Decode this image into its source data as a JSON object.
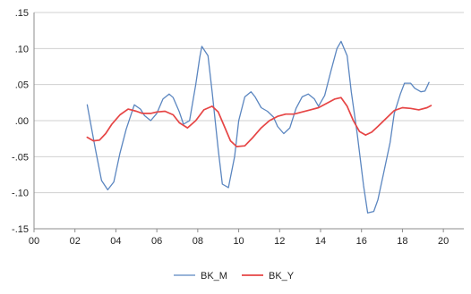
{
  "chart_data": {
    "type": "line",
    "title": "",
    "xlabel": "",
    "ylabel": "",
    "xlim": [
      2000,
      2021
    ],
    "ylim": [
      -0.15,
      0.15
    ],
    "x_ticks": [
      {
        "value": 2000,
        "label": "00"
      },
      {
        "value": 2002,
        "label": "02"
      },
      {
        "value": 2004,
        "label": "04"
      },
      {
        "value": 2006,
        "label": "06"
      },
      {
        "value": 2008,
        "label": "08"
      },
      {
        "value": 2010,
        "label": "10"
      },
      {
        "value": 2012,
        "label": "12"
      },
      {
        "value": 2014,
        "label": "14"
      },
      {
        "value": 2016,
        "label": "16"
      },
      {
        "value": 2018,
        "label": "18"
      },
      {
        "value": 2020,
        "label": "20"
      }
    ],
    "y_ticks": [
      {
        "value": 0.15,
        "label": ".15"
      },
      {
        "value": 0.1,
        "label": ".10"
      },
      {
        "value": 0.05,
        "label": ".05"
      },
      {
        "value": 0.0,
        "label": ".00"
      },
      {
        "value": -0.05,
        "label": "-.05"
      },
      {
        "value": -0.1,
        "label": "-.10"
      },
      {
        "value": -0.15,
        "label": "-.15"
      }
    ],
    "grid": {
      "horizontal": true,
      "vertical": false
    },
    "legend_position": "bottom",
    "series": [
      {
        "name": "BK_M",
        "color": "#5b86c0",
        "points": [
          [
            2002.6,
            0.022
          ],
          [
            2003.0,
            -0.04
          ],
          [
            2003.3,
            -0.083
          ],
          [
            2003.6,
            -0.096
          ],
          [
            2003.9,
            -0.085
          ],
          [
            2004.2,
            -0.045
          ],
          [
            2004.5,
            -0.012
          ],
          [
            2004.9,
            0.022
          ],
          [
            2005.2,
            0.016
          ],
          [
            2005.4,
            0.007
          ],
          [
            2005.7,
            0.0
          ],
          [
            2006.0,
            0.01
          ],
          [
            2006.3,
            0.03
          ],
          [
            2006.6,
            0.037
          ],
          [
            2006.8,
            0.032
          ],
          [
            2007.1,
            0.012
          ],
          [
            2007.3,
            -0.005
          ],
          [
            2007.6,
            0.0
          ],
          [
            2007.9,
            0.05
          ],
          [
            2008.1,
            0.088
          ],
          [
            2008.2,
            0.103
          ],
          [
            2008.5,
            0.09
          ],
          [
            2008.7,
            0.04
          ],
          [
            2009.0,
            -0.04
          ],
          [
            2009.2,
            -0.088
          ],
          [
            2009.5,
            -0.093
          ],
          [
            2009.8,
            -0.05
          ],
          [
            2010.0,
            0.0
          ],
          [
            2010.3,
            0.033
          ],
          [
            2010.6,
            0.04
          ],
          [
            2010.8,
            0.033
          ],
          [
            2011.1,
            0.018
          ],
          [
            2011.4,
            0.013
          ],
          [
            2011.7,
            0.005
          ],
          [
            2011.9,
            -0.008
          ],
          [
            2012.2,
            -0.018
          ],
          [
            2012.5,
            -0.01
          ],
          [
            2012.8,
            0.017
          ],
          [
            2013.1,
            0.033
          ],
          [
            2013.4,
            0.037
          ],
          [
            2013.7,
            0.03
          ],
          [
            2013.9,
            0.02
          ],
          [
            2014.2,
            0.035
          ],
          [
            2014.5,
            0.068
          ],
          [
            2014.8,
            0.1
          ],
          [
            2015.0,
            0.11
          ],
          [
            2015.3,
            0.09
          ],
          [
            2015.5,
            0.04
          ],
          [
            2015.8,
            -0.02
          ],
          [
            2016.1,
            -0.09
          ],
          [
            2016.3,
            -0.128
          ],
          [
            2016.6,
            -0.126
          ],
          [
            2016.8,
            -0.11
          ],
          [
            2017.1,
            -0.07
          ],
          [
            2017.4,
            -0.03
          ],
          [
            2017.6,
            0.01
          ],
          [
            2017.9,
            0.037
          ],
          [
            2018.1,
            0.052
          ],
          [
            2018.4,
            0.052
          ],
          [
            2018.6,
            0.045
          ],
          [
            2018.9,
            0.04
          ],
          [
            2019.1,
            0.041
          ],
          [
            2019.3,
            0.053
          ]
        ]
      },
      {
        "name": "BK_Y",
        "color": "#e64545",
        "points": [
          [
            2002.6,
            -0.023
          ],
          [
            2002.9,
            -0.028
          ],
          [
            2003.2,
            -0.027
          ],
          [
            2003.5,
            -0.018
          ],
          [
            2003.8,
            -0.005
          ],
          [
            2004.2,
            0.008
          ],
          [
            2004.6,
            0.016
          ],
          [
            2005.0,
            0.013
          ],
          [
            2005.3,
            0.01
          ],
          [
            2005.7,
            0.01
          ],
          [
            2006.0,
            0.012
          ],
          [
            2006.4,
            0.013
          ],
          [
            2006.8,
            0.008
          ],
          [
            2007.1,
            -0.003
          ],
          [
            2007.5,
            -0.01
          ],
          [
            2007.9,
            0.0
          ],
          [
            2008.3,
            0.015
          ],
          [
            2008.7,
            0.02
          ],
          [
            2009.0,
            0.012
          ],
          [
            2009.3,
            -0.008
          ],
          [
            2009.6,
            -0.028
          ],
          [
            2009.9,
            -0.036
          ],
          [
            2010.3,
            -0.035
          ],
          [
            2010.7,
            -0.023
          ],
          [
            2011.1,
            -0.01
          ],
          [
            2011.5,
            0.0
          ],
          [
            2011.9,
            0.006
          ],
          [
            2012.3,
            0.009
          ],
          [
            2012.7,
            0.009
          ],
          [
            2013.1,
            0.012
          ],
          [
            2013.5,
            0.015
          ],
          [
            2013.9,
            0.018
          ],
          [
            2014.3,
            0.024
          ],
          [
            2014.7,
            0.03
          ],
          [
            2015.0,
            0.032
          ],
          [
            2015.3,
            0.02
          ],
          [
            2015.6,
            0.0
          ],
          [
            2015.9,
            -0.015
          ],
          [
            2016.2,
            -0.02
          ],
          [
            2016.5,
            -0.016
          ],
          [
            2016.8,
            -0.008
          ],
          [
            2017.2,
            0.003
          ],
          [
            2017.6,
            0.014
          ],
          [
            2018.0,
            0.018
          ],
          [
            2018.4,
            0.017
          ],
          [
            2018.8,
            0.015
          ],
          [
            2019.2,
            0.018
          ],
          [
            2019.4,
            0.021
          ]
        ]
      }
    ]
  }
}
